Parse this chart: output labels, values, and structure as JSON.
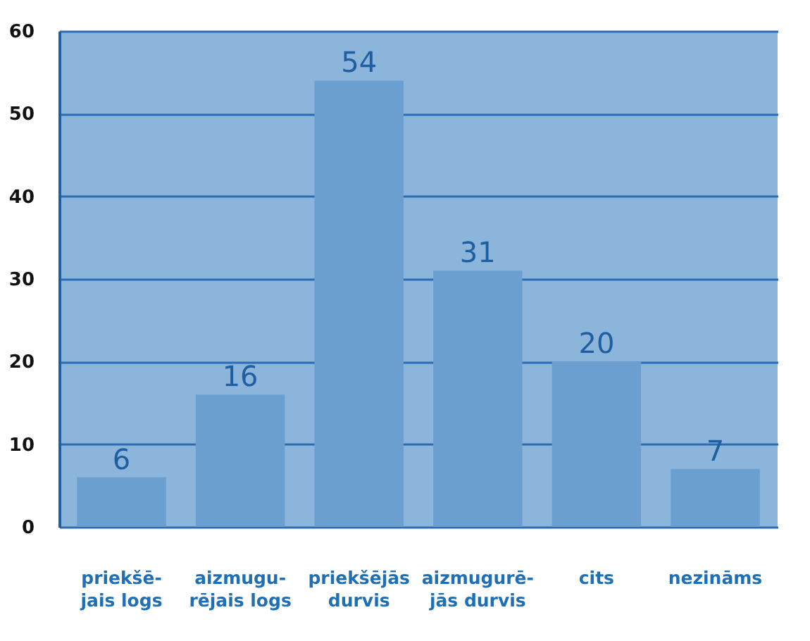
{
  "chart_data": {
    "type": "bar",
    "categories": [
      "priekšē-\njais logs",
      "aizmugu-\nrējais logs",
      "priekšējās\ndurvis",
      "aizmugurē-\njās durvis",
      "cits",
      "nezināms"
    ],
    "values": [
      6,
      16,
      54,
      31,
      20,
      7
    ],
    "color": "#6a9fd0",
    "ylim": [
      0,
      60
    ],
    "yticks": [
      0,
      10,
      20,
      30,
      40,
      50,
      60
    ],
    "grid": "y",
    "data_labels": true
  }
}
